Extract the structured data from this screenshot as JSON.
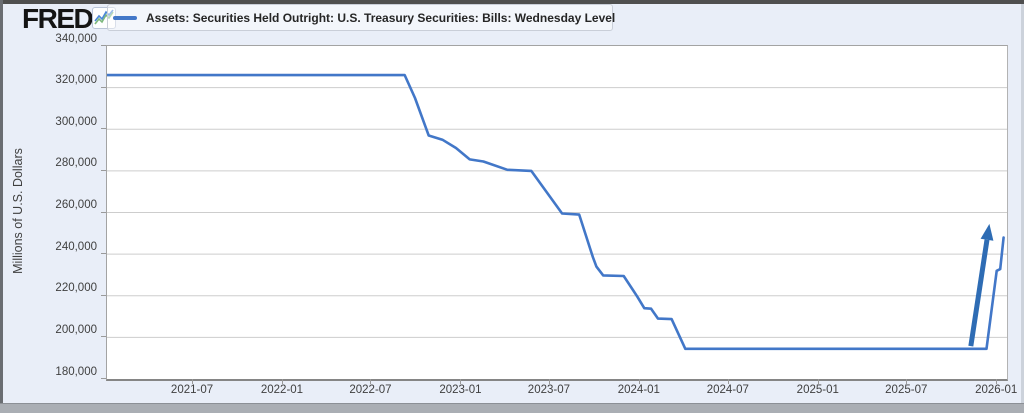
{
  "header": {
    "logo_text": "FRED",
    "registered_mark": "®",
    "legend_label": "Assets: Securities Held Outright: U.S. Treasury Securities: Bills: Wednesday Level"
  },
  "colors": {
    "line": "#4277c8",
    "arrow": "#2e6cb4",
    "gridline": "#cdcdcd",
    "background": "#e9eef8",
    "plot_background": "#ffffff"
  },
  "chart_data": {
    "type": "line",
    "title": "Assets: Securities Held Outright: U.S. Treasury Securities: Bills: Wednesday Level",
    "xlabel": "",
    "ylabel": "Millions of U.S. Dollars",
    "xlim": [
      "2021-01-06",
      "2026-01-21"
    ],
    "ylim": [
      180000,
      340000
    ],
    "grid": "horizontal",
    "legend_position": "top-left",
    "yticks": [
      {
        "value": 340000,
        "label": "340,000"
      },
      {
        "value": 320000,
        "label": "320,000"
      },
      {
        "value": 300000,
        "label": "300,000"
      },
      {
        "value": 280000,
        "label": "280,000"
      },
      {
        "value": 260000,
        "label": "260,000"
      },
      {
        "value": 240000,
        "label": "240,000"
      },
      {
        "value": 220000,
        "label": "220,000"
      },
      {
        "value": 200000,
        "label": "200,000"
      },
      {
        "value": 180000,
        "label": "180,000"
      }
    ],
    "xticks": [
      {
        "value": "2021-07-01",
        "label": "2021-07"
      },
      {
        "value": "2022-01-01",
        "label": "2022-01"
      },
      {
        "value": "2022-07-01",
        "label": "2022-07"
      },
      {
        "value": "2023-01-01",
        "label": "2023-01"
      },
      {
        "value": "2023-07-01",
        "label": "2023-07"
      },
      {
        "value": "2024-01-01",
        "label": "2024-01"
      },
      {
        "value": "2024-07-01",
        "label": "2024-07"
      },
      {
        "value": "2025-01-01",
        "label": "2025-01"
      },
      {
        "value": "2025-07-01",
        "label": "2025-07"
      },
      {
        "value": "2026-01-01",
        "label": "2026-01"
      }
    ],
    "series": [
      {
        "name": "Assets: Securities Held Outright: U.S. Treasury Securities: Bills: Wednesday Level",
        "color": "#4277c8",
        "points": [
          [
            "2021-01-06",
            326000
          ],
          [
            "2022-09-07",
            326000
          ],
          [
            "2022-09-28",
            315000
          ],
          [
            "2022-10-26",
            297000
          ],
          [
            "2022-11-23",
            295000
          ],
          [
            "2022-12-21",
            291000
          ],
          [
            "2023-01-18",
            285500
          ],
          [
            "2023-02-15",
            284500
          ],
          [
            "2023-04-05",
            280500
          ],
          [
            "2023-05-24",
            280000
          ],
          [
            "2023-07-26",
            259500
          ],
          [
            "2023-08-30",
            259000
          ],
          [
            "2023-09-27",
            238500
          ],
          [
            "2023-10-04",
            234000
          ],
          [
            "2023-10-18",
            229800
          ],
          [
            "2023-11-29",
            229500
          ],
          [
            "2023-12-27",
            219500
          ],
          [
            "2024-01-10",
            214000
          ],
          [
            "2024-01-24",
            213800
          ],
          [
            "2024-02-07",
            209000
          ],
          [
            "2024-03-06",
            208800
          ],
          [
            "2024-04-03",
            194500
          ],
          [
            "2025-12-10",
            194500
          ],
          [
            "2025-12-31",
            232000
          ],
          [
            "2026-01-07",
            232800
          ],
          [
            "2026-01-14",
            248000
          ]
        ]
      }
    ],
    "annotations": [
      {
        "type": "arrow",
        "color": "#2e6cb4",
        "from": [
          "2025-11-08",
          195800
        ],
        "to": [
          "2025-12-16",
          254500
        ]
      }
    ]
  }
}
